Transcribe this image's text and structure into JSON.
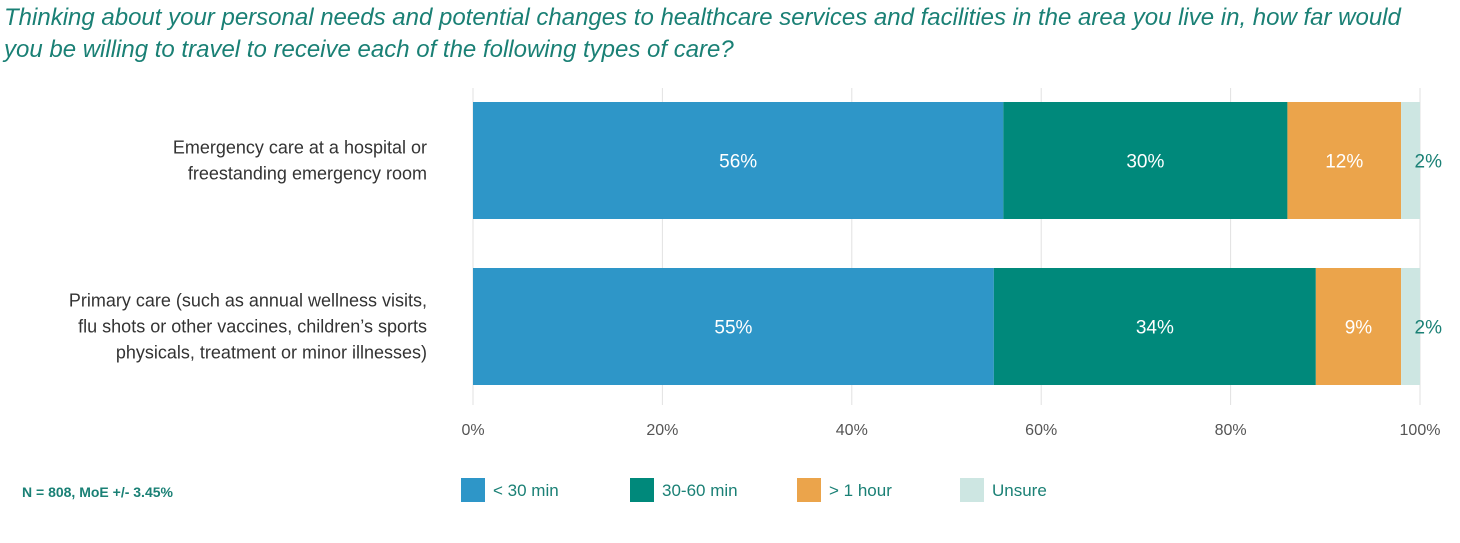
{
  "chart_data": {
    "type": "bar",
    "orientation": "horizontal",
    "stacked": true,
    "title": "Thinking about your personal needs and potential changes to healthcare services and facilities in the area you live in, how far would you be willing to travel to receive each of the following types of care?",
    "categories": [
      [
        "Emergency care at a hospital or",
        "freestanding emergency room"
      ],
      [
        "Primary care (such as annual wellness visits,",
        "flu shots or other vaccines, children’s sports",
        "physicals, treatment or minor illnesses)"
      ]
    ],
    "series": [
      {
        "name": "< 30 min",
        "values": [
          56,
          55
        ],
        "labels": [
          "56%",
          "55%"
        ],
        "color": "#2e96c8",
        "label_color": "#ffffff"
      },
      {
        "name": "30-60 min",
        "values": [
          30,
          34
        ],
        "labels": [
          "30%",
          "34%"
        ],
        "color": "#00897b",
        "label_color": "#ffffff"
      },
      {
        "name": "> 1 hour",
        "values": [
          12,
          9
        ],
        "labels": [
          "12%",
          "9%"
        ],
        "color": "#eba44b",
        "label_color": "#ffffff"
      },
      {
        "name": "Unsure",
        "values": [
          2,
          2
        ],
        "labels": [
          "2%",
          "2%"
        ],
        "color": "#cde6e2",
        "label_color": "#1a8075"
      }
    ],
    "xlim": [
      0,
      100
    ],
    "xticks": [
      "0%",
      "20%",
      "40%",
      "60%",
      "80%",
      "100%"
    ],
    "grid": true,
    "legend": "bottom"
  },
  "note": "N = 808, MoE +/- 3.45%"
}
